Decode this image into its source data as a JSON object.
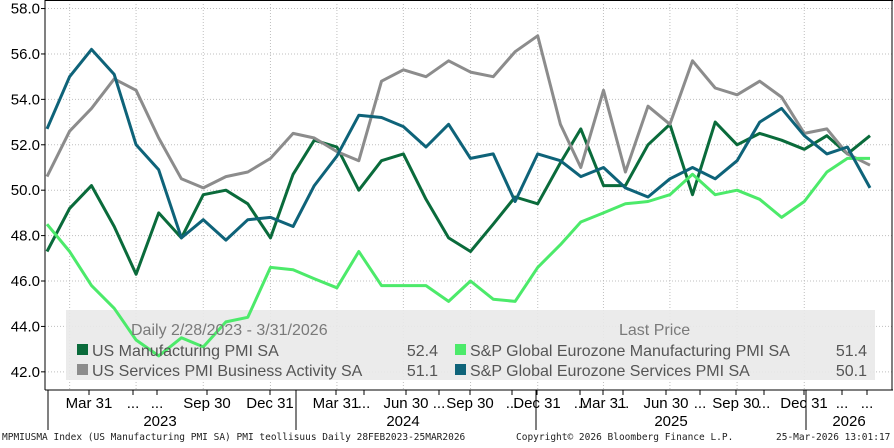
{
  "chart_data": {
    "type": "line",
    "grid": true,
    "legend_placement": "bottom-center",
    "ylim": [
      41.2,
      58.2
    ],
    "y_ticks": [
      42.0,
      44.0,
      46.0,
      48.0,
      50.0,
      52.0,
      54.0,
      56.0,
      58.0
    ],
    "y_tick_labels": [
      "42.0",
      "44.0",
      "46.0",
      "48.0",
      "50.0",
      "52.0",
      "54.0",
      "56.0",
      "58.0"
    ],
    "x_dates": [
      "2023-02-28",
      "2023-03-31",
      "2023-04-30",
      "2023-05-31",
      "2023-06-30",
      "2023-07-31",
      "2023-08-31",
      "2023-09-30",
      "2023-10-31",
      "2023-11-30",
      "2023-12-31",
      "2024-01-31",
      "2024-02-29",
      "2024-03-31",
      "2024-04-30",
      "2024-05-31",
      "2024-06-30",
      "2024-07-31",
      "2024-08-31",
      "2024-09-30",
      "2024-10-31",
      "2024-11-30",
      "2024-12-31",
      "2025-01-31",
      "2025-02-28",
      "2025-03-31",
      "2025-04-30",
      "2025-05-31",
      "2025-06-30",
      "2025-07-31",
      "2025-08-31",
      "2025-09-30",
      "2025-10-31",
      "2025-11-30",
      "2025-12-31",
      "2026-01-31",
      "2026-02-28",
      "2026-03-31"
    ],
    "x_tick_labels": [
      "Mar 31",
      "...",
      "...",
      "Sep 30",
      "Dec 31",
      "Mar 31",
      "...",
      "Jun 30",
      "...",
      "Sep 30",
      "...",
      "Dec 31",
      "...",
      "Mar 31",
      "...",
      "Jun 30",
      "...",
      "Sep 30",
      "...",
      "Dec 31",
      "...",
      "..."
    ],
    "x_years": [
      "2023",
      "2024",
      "2025",
      "2026"
    ],
    "legend_header": {
      "range": "Daily 2/28/2023 - 3/31/2026",
      "last_price": "Last Price"
    },
    "series": [
      {
        "name": "US Manufacturing PMI SA",
        "last": "52.4",
        "color": "#0a6b3b",
        "values": [
          47.3,
          49.2,
          50.2,
          48.4,
          46.3,
          49.0,
          47.9,
          49.8,
          50.0,
          49.4,
          47.9,
          50.7,
          52.2,
          51.9,
          50.0,
          51.3,
          51.6,
          49.6,
          47.9,
          47.3,
          48.5,
          49.7,
          49.4,
          51.2,
          52.7,
          50.2,
          50.2,
          52.0,
          52.9,
          49.8,
          53.0,
          52.0,
          52.5,
          52.2,
          51.8,
          52.4,
          51.6,
          52.4
        ]
      },
      {
        "name": "US Services PMI Business Activity SA",
        "last": "51.1",
        "color": "#8c8c8c",
        "values": [
          50.6,
          52.6,
          53.6,
          54.9,
          54.4,
          52.3,
          50.5,
          50.1,
          50.6,
          50.8,
          51.4,
          52.5,
          52.3,
          51.7,
          51.3,
          54.8,
          55.3,
          55.0,
          55.7,
          55.2,
          55.0,
          56.1,
          56.8,
          52.9,
          51.0,
          54.4,
          50.8,
          53.7,
          52.9,
          55.7,
          54.5,
          54.2,
          54.8,
          54.1,
          52.5,
          52.7,
          51.6,
          51.1
        ]
      },
      {
        "name": "S&P Global Eurozone Manufacturing PMI SA",
        "last": "51.4",
        "color": "#4cea6a",
        "values": [
          48.5,
          47.3,
          45.8,
          44.8,
          43.4,
          42.7,
          43.5,
          43.1,
          44.2,
          44.4,
          46.6,
          46.5,
          46.1,
          45.7,
          47.3,
          45.8,
          45.8,
          45.8,
          45.1,
          46.0,
          45.2,
          45.1,
          46.6,
          47.6,
          48.6,
          49.0,
          49.4,
          49.5,
          49.8,
          50.7,
          49.8,
          50.0,
          49.6,
          48.8,
          49.5,
          50.8,
          51.4,
          51.4
        ]
      },
      {
        "name": "S&P Global Eurozone Services PMI SA",
        "last": "50.1",
        "color": "#0e6379",
        "values": [
          52.7,
          55.0,
          56.2,
          55.1,
          52.0,
          50.9,
          47.9,
          48.7,
          47.8,
          48.7,
          48.8,
          48.4,
          50.2,
          51.5,
          53.3,
          53.2,
          52.8,
          51.9,
          52.9,
          51.4,
          51.6,
          49.5,
          51.6,
          51.3,
          50.6,
          51.0,
          50.1,
          49.7,
          50.5,
          51.0,
          50.5,
          51.3,
          53.0,
          53.6,
          52.4,
          51.6,
          51.9,
          50.1
        ]
      }
    ]
  },
  "footer": {
    "left": "MPMIUSMA Index (US Manufacturing PMI SA) PMI teollisuus Daily 28FEB2023-25MAR2026",
    "center": "Copyright© 2026 Bloomberg Finance L.P.",
    "right": "25-Mar-2026 13:01:17"
  }
}
